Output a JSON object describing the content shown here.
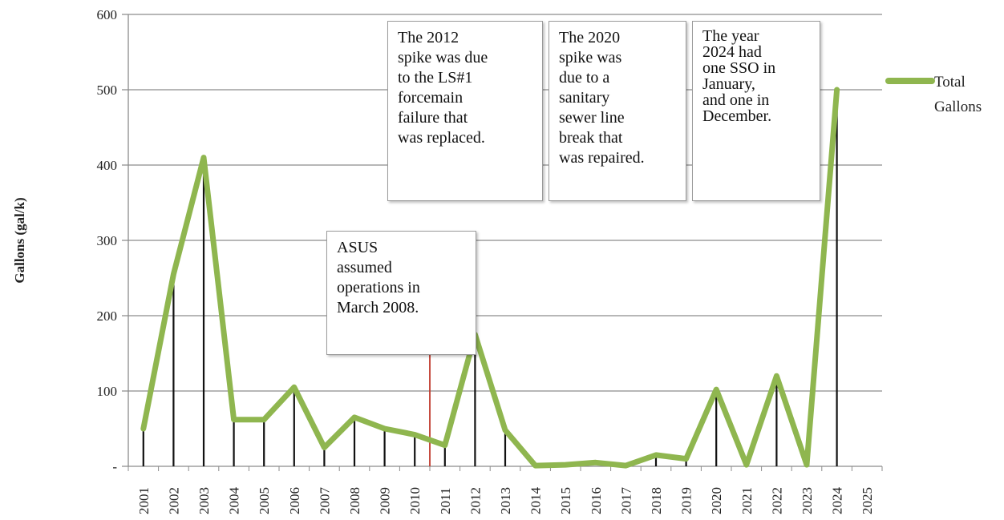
{
  "chart_data": {
    "type": "line",
    "title": "",
    "xlabel": "",
    "ylabel": "Gallons (gal/k)",
    "ylim": [
      0,
      600
    ],
    "yticks": [
      "-",
      "100",
      "200",
      "300",
      "400",
      "500",
      "600"
    ],
    "ytick_values": [
      0,
      100,
      200,
      300,
      400,
      500,
      600
    ],
    "grid": true,
    "legend_position": "right",
    "categories": [
      "2001",
      "2002",
      "2003",
      "2004",
      "2005",
      "2006",
      "2007",
      "2008",
      "2009",
      "2010",
      "2011",
      "2012",
      "2013",
      "2014",
      "2015",
      "2016",
      "2017",
      "2018",
      "2019",
      "2020",
      "2021",
      "2022",
      "2023",
      "2024",
      "2025"
    ],
    "series": [
      {
        "name": "Total Gallons",
        "color": "#8fb64f",
        "values": [
          50,
          255,
          410,
          62,
          62,
          105,
          25,
          65,
          50,
          42,
          28,
          175,
          48,
          1,
          2,
          5,
          1,
          15,
          10,
          102,
          2,
          120,
          2,
          500,
          null
        ]
      }
    ],
    "marker_line": {
      "year": "2009.5",
      "color": "#c0392b",
      "x_value": 9.5
    },
    "annotations": [
      {
        "text": [
          "ASUS",
          "assumed",
          "operations in",
          "March 2008."
        ]
      },
      {
        "text": [
          "The 2012",
          "spike was due",
          "to the LS#1",
          "forcemain",
          "failure that",
          "was replaced."
        ]
      },
      {
        "text": [
          "The 2020",
          "spike was",
          "due to a",
          "sanitary",
          "sewer line",
          "break that",
          "was repaired."
        ]
      },
      {
        "text": [
          "The year",
          "2024 had",
          "one SSO in",
          "January,",
          "and one in",
          "December."
        ]
      }
    ]
  }
}
